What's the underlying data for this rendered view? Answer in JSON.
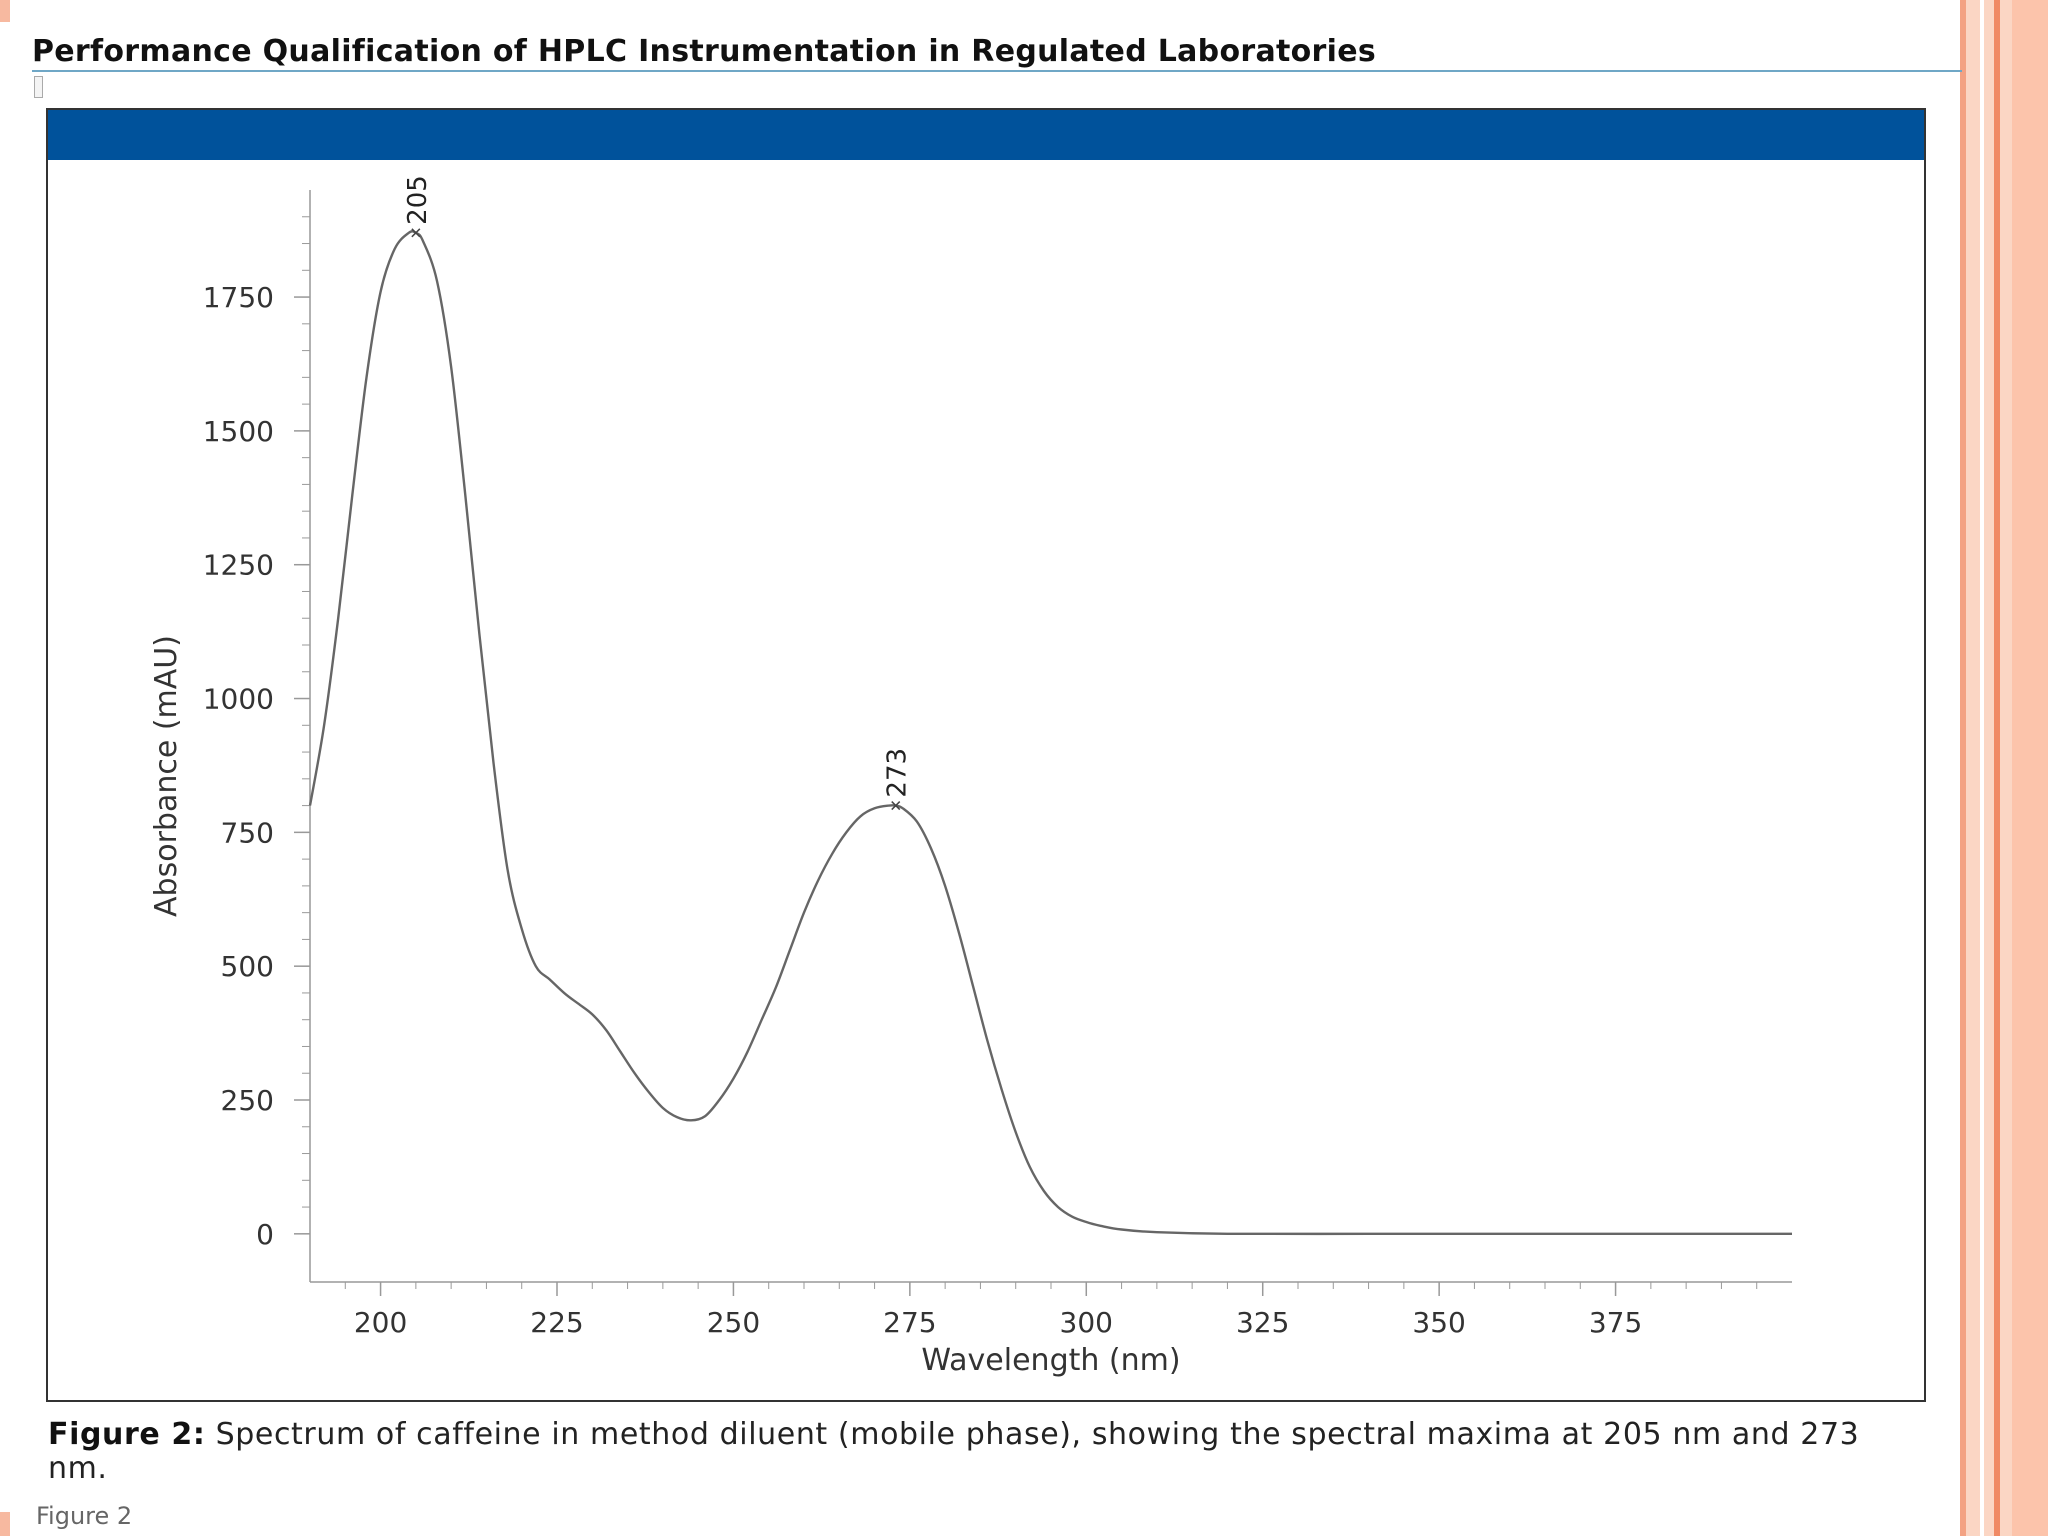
{
  "page": {
    "title": "Performance Qualification of HPLC Instrumentation in Regulated Laboratories",
    "caption_label": "Figure 2:",
    "caption_text": " Spectrum of caffeine in method diluent (mobile phase), showing the spectral maxima at 205 nm and 273 nm.",
    "footnote": "Figure 2"
  },
  "colors": {
    "header_band": "#00529b",
    "curve": "#666666",
    "axis": "#999999",
    "accent_border": "#f3a283"
  },
  "chart_data": {
    "type": "line",
    "title": "",
    "xlabel": "Wavelength (nm)",
    "ylabel": "Absorbance (mAU)",
    "xlim": [
      190,
      400
    ],
    "ylim": [
      -90,
      1950
    ],
    "x_ticks": [
      200,
      225,
      250,
      275,
      300,
      325,
      350,
      375
    ],
    "y_ticks": [
      0,
      250,
      500,
      750,
      1000,
      1250,
      1500,
      1750
    ],
    "grid": false,
    "series": [
      {
        "name": "Caffeine spectrum",
        "x": [
          190,
          192,
          194,
          196,
          198,
          200,
          202,
          204,
          205,
          206,
          208,
          210,
          212,
          214,
          216,
          218,
          220,
          222,
          224,
          226,
          228,
          230,
          232,
          234,
          236,
          238,
          240,
          242,
          244,
          246,
          248,
          250,
          252,
          254,
          256,
          258,
          260,
          262,
          264,
          266,
          268,
          270,
          272,
          273,
          274,
          276,
          278,
          280,
          282,
          284,
          286,
          288,
          290,
          292,
          294,
          296,
          298,
          300,
          302,
          305,
          310,
          320,
          340,
          360,
          380,
          400
        ],
        "y": [
          800,
          950,
          1150,
          1380,
          1600,
          1760,
          1840,
          1870,
          1870,
          1855,
          1780,
          1620,
          1380,
          1120,
          880,
          680,
          570,
          500,
          475,
          450,
          430,
          410,
          380,
          340,
          300,
          265,
          235,
          218,
          212,
          220,
          250,
          290,
          340,
          400,
          460,
          530,
          600,
          660,
          710,
          750,
          780,
          795,
          800,
          800,
          795,
          770,
          720,
          650,
          560,
          460,
          360,
          270,
          190,
          125,
          80,
          50,
          32,
          22,
          15,
          8,
          3,
          0,
          0,
          0,
          0,
          0
        ]
      }
    ],
    "annotations": [
      {
        "text": "205",
        "x": 205,
        "y": 1870
      },
      {
        "text": "273",
        "x": 273,
        "y": 800
      }
    ]
  }
}
